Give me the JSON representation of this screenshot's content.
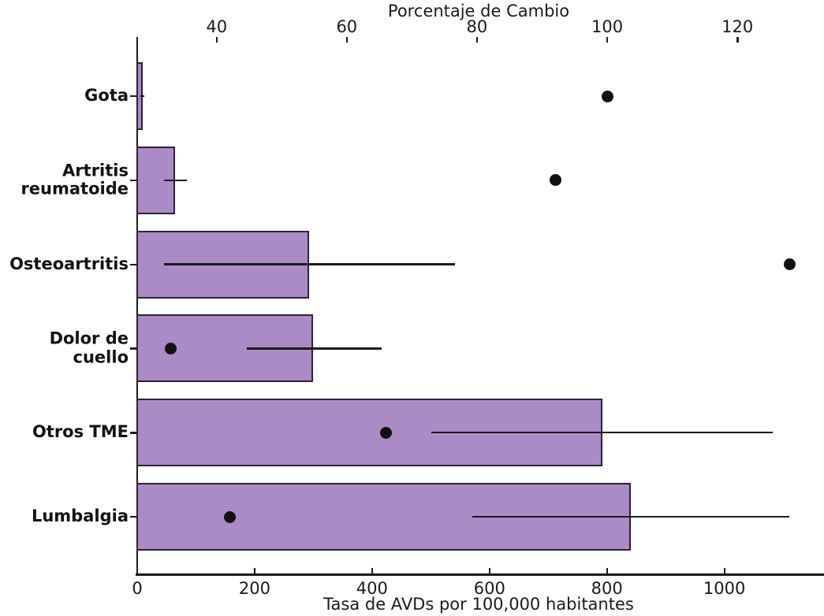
{
  "chart_data": {
    "type": "bar",
    "orientation": "horizontal",
    "categories": [
      "Gota",
      "Artritis reumatoide",
      "Osteoartritis",
      "Dolor de cuello",
      "Otros TME",
      "Lumbalgia"
    ],
    "series": [
      {
        "name": "Tasa de AVDs por 100,000 habitantes",
        "style": "bar",
        "axis": "bottom",
        "values": [
          9,
          64,
          293,
          300,
          792,
          841
        ],
        "error_low": [
          6,
          45,
          45,
          186,
          501,
          571
        ],
        "error_high": [
          12,
          85,
          541,
          416,
          1082,
          1111
        ]
      },
      {
        "name": "Porcentaje de Cambio",
        "style": "dot",
        "axis": "top",
        "values": [
          100,
          92,
          128,
          33,
          66,
          42
        ]
      }
    ],
    "axes": {
      "bottom": {
        "label": "Tasa de AVDs por 100,000 habitantes",
        "ticks": [
          0,
          200,
          400,
          600,
          800,
          1000
        ],
        "min": 0,
        "max": 1163
      },
      "top": {
        "label": "Porcentaje de Cambio",
        "ticks": [
          40,
          60,
          80,
          100,
          120
        ],
        "min": 27.8,
        "max": 132.7
      }
    },
    "colors": {
      "bar_fill": "#ab8bc6",
      "bar_edge": "#2b2138",
      "dot": "#111111",
      "error_bar": "#1a1a1a",
      "text": "#1a1a1a"
    },
    "grid": false,
    "legend": false
  }
}
